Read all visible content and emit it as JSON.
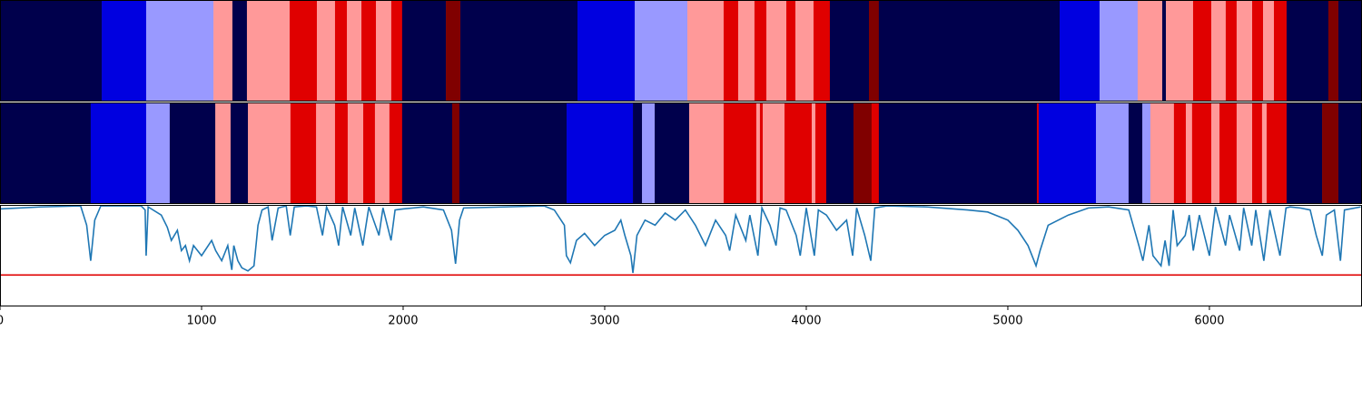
{
  "chart_data": [
    {
      "type": "segments",
      "xlim": [
        0,
        6757
      ],
      "segments": [
        {
          "start": 0,
          "end": 505,
          "color": "#00004c"
        },
        {
          "start": 505,
          "end": 725,
          "color": "#0000e0"
        },
        {
          "start": 725,
          "end": 1059,
          "color": "#9999ff"
        },
        {
          "start": 1059,
          "end": 1153,
          "color": "#ff9999"
        },
        {
          "start": 1153,
          "end": 1225,
          "color": "#00004c"
        },
        {
          "start": 1225,
          "end": 1437,
          "color": "#ff9999"
        },
        {
          "start": 1437,
          "end": 1572,
          "color": "#e00000"
        },
        {
          "start": 1572,
          "end": 1662,
          "color": "#ff9999"
        },
        {
          "start": 1662,
          "end": 1721,
          "color": "#e00000"
        },
        {
          "start": 1721,
          "end": 1793,
          "color": "#ff9999"
        },
        {
          "start": 1793,
          "end": 1865,
          "color": "#e00000"
        },
        {
          "start": 1865,
          "end": 1941,
          "color": "#ff9999"
        },
        {
          "start": 1941,
          "end": 1995,
          "color": "#e00000"
        },
        {
          "start": 1995,
          "end": 2212,
          "color": "#00004c"
        },
        {
          "start": 2212,
          "end": 2284,
          "color": "#800000"
        },
        {
          "start": 2284,
          "end": 2865,
          "color": "#00004c"
        },
        {
          "start": 2865,
          "end": 3149,
          "color": "#0000e0"
        },
        {
          "start": 3149,
          "end": 3410,
          "color": "#9999ff"
        },
        {
          "start": 3410,
          "end": 3590,
          "color": "#ff9999"
        },
        {
          "start": 3590,
          "end": 3662,
          "color": "#e00000"
        },
        {
          "start": 3662,
          "end": 3743,
          "color": "#ff9999"
        },
        {
          "start": 3743,
          "end": 3802,
          "color": "#e00000"
        },
        {
          "start": 3802,
          "end": 3901,
          "color": "#ff9999"
        },
        {
          "start": 3901,
          "end": 3946,
          "color": "#e00000"
        },
        {
          "start": 3946,
          "end": 4036,
          "color": "#ff9999"
        },
        {
          "start": 4036,
          "end": 4117,
          "color": "#e00000"
        },
        {
          "start": 4117,
          "end": 4311,
          "color": "#00004c"
        },
        {
          "start": 4311,
          "end": 4360,
          "color": "#800000"
        },
        {
          "start": 4360,
          "end": 5257,
          "color": "#00004c"
        },
        {
          "start": 5257,
          "end": 5455,
          "color": "#0000e0"
        },
        {
          "start": 5455,
          "end": 5644,
          "color": "#9999ff"
        },
        {
          "start": 5644,
          "end": 5766,
          "color": "#ff9999"
        },
        {
          "start": 5766,
          "end": 5784,
          "color": "#00004c"
        },
        {
          "start": 5784,
          "end": 5919,
          "color": "#ff9999"
        },
        {
          "start": 5919,
          "end": 6009,
          "color": "#e00000"
        },
        {
          "start": 6009,
          "end": 6081,
          "color": "#ff9999"
        },
        {
          "start": 6081,
          "end": 6135,
          "color": "#e00000"
        },
        {
          "start": 6135,
          "end": 6212,
          "color": "#ff9999"
        },
        {
          "start": 6212,
          "end": 6266,
          "color": "#e00000"
        },
        {
          "start": 6266,
          "end": 6320,
          "color": "#ff9999"
        },
        {
          "start": 6320,
          "end": 6383,
          "color": "#e00000"
        },
        {
          "start": 6383,
          "end": 6590,
          "color": "#00004c"
        },
        {
          "start": 6590,
          "end": 6640,
          "color": "#800000"
        },
        {
          "start": 6640,
          "end": 6757,
          "color": "#00004c"
        }
      ]
    },
    {
      "type": "segments",
      "xlim": [
        0,
        6757
      ],
      "segments": [
        {
          "start": 0,
          "end": 450,
          "color": "#00004c"
        },
        {
          "start": 450,
          "end": 725,
          "color": "#0000e0"
        },
        {
          "start": 725,
          "end": 842,
          "color": "#9999ff"
        },
        {
          "start": 842,
          "end": 1068,
          "color": "#00004c"
        },
        {
          "start": 1068,
          "end": 1144,
          "color": "#ff9999"
        },
        {
          "start": 1144,
          "end": 1230,
          "color": "#00004c"
        },
        {
          "start": 1230,
          "end": 1441,
          "color": "#ff9999"
        },
        {
          "start": 1441,
          "end": 1568,
          "color": "#e00000"
        },
        {
          "start": 1568,
          "end": 1662,
          "color": "#ff9999"
        },
        {
          "start": 1662,
          "end": 1725,
          "color": "#e00000"
        },
        {
          "start": 1725,
          "end": 1802,
          "color": "#ff9999"
        },
        {
          "start": 1802,
          "end": 1860,
          "color": "#e00000"
        },
        {
          "start": 1860,
          "end": 1932,
          "color": "#ff9999"
        },
        {
          "start": 1932,
          "end": 1995,
          "color": "#e00000"
        },
        {
          "start": 1995,
          "end": 2243,
          "color": "#00004c"
        },
        {
          "start": 2243,
          "end": 2279,
          "color": "#800000"
        },
        {
          "start": 2279,
          "end": 2811,
          "color": "#00004c"
        },
        {
          "start": 2811,
          "end": 3140,
          "color": "#0000e0"
        },
        {
          "start": 3140,
          "end": 3185,
          "color": "#00004c"
        },
        {
          "start": 3185,
          "end": 3248,
          "color": "#9999ff"
        },
        {
          "start": 3248,
          "end": 3419,
          "color": "#00004c"
        },
        {
          "start": 3419,
          "end": 3590,
          "color": "#ff9999"
        },
        {
          "start": 3590,
          "end": 3752,
          "color": "#e00000"
        },
        {
          "start": 3752,
          "end": 3770,
          "color": "#ff9999"
        },
        {
          "start": 3770,
          "end": 3784,
          "color": "#e00000"
        },
        {
          "start": 3784,
          "end": 3892,
          "color": "#ff9999"
        },
        {
          "start": 3892,
          "end": 4027,
          "color": "#e00000"
        },
        {
          "start": 4027,
          "end": 4045,
          "color": "#ff9999"
        },
        {
          "start": 4045,
          "end": 4099,
          "color": "#e00000"
        },
        {
          "start": 4099,
          "end": 4234,
          "color": "#00004c"
        },
        {
          "start": 4234,
          "end": 4324,
          "color": "#800000"
        },
        {
          "start": 4324,
          "end": 4360,
          "color": "#e00000"
        },
        {
          "start": 4360,
          "end": 5144,
          "color": "#00004c"
        },
        {
          "start": 5144,
          "end": 5153,
          "color": "#e00000"
        },
        {
          "start": 5153,
          "end": 5437,
          "color": "#0000e0"
        },
        {
          "start": 5437,
          "end": 5599,
          "color": "#9999ff"
        },
        {
          "start": 5599,
          "end": 5667,
          "color": "#00004c"
        },
        {
          "start": 5667,
          "end": 5707,
          "color": "#9999ff"
        },
        {
          "start": 5707,
          "end": 5824,
          "color": "#ff9999"
        },
        {
          "start": 5824,
          "end": 5883,
          "color": "#e00000"
        },
        {
          "start": 5883,
          "end": 5914,
          "color": "#ff9999"
        },
        {
          "start": 5914,
          "end": 6009,
          "color": "#e00000"
        },
        {
          "start": 6009,
          "end": 6050,
          "color": "#ff9999"
        },
        {
          "start": 6050,
          "end": 6135,
          "color": "#e00000"
        },
        {
          "start": 6135,
          "end": 6212,
          "color": "#ff9999"
        },
        {
          "start": 6212,
          "end": 6261,
          "color": "#e00000"
        },
        {
          "start": 6261,
          "end": 6284,
          "color": "#ff9999"
        },
        {
          "start": 6284,
          "end": 6383,
          "color": "#e00000"
        },
        {
          "start": 6383,
          "end": 6559,
          "color": "#00004c"
        },
        {
          "start": 6559,
          "end": 6640,
          "color": "#800000"
        },
        {
          "start": 6640,
          "end": 6757,
          "color": "#00004c"
        }
      ]
    },
    {
      "type": "line",
      "xlim": [
        0,
        6757
      ],
      "ylim": [
        0,
        1
      ],
      "xticks": [
        0,
        1000,
        2000,
        3000,
        4000,
        5000,
        6000
      ],
      "threshold": 0.31,
      "threshold_color": "#e00000",
      "x": [
        0,
        200,
        400,
        430,
        450,
        470,
        500,
        700,
        720,
        725,
        735,
        800,
        830,
        850,
        880,
        900,
        920,
        940,
        960,
        1000,
        1050,
        1070,
        1100,
        1130,
        1150,
        1160,
        1180,
        1200,
        1230,
        1260,
        1280,
        1300,
        1330,
        1350,
        1380,
        1420,
        1440,
        1460,
        1520,
        1570,
        1600,
        1620,
        1660,
        1680,
        1700,
        1740,
        1760,
        1800,
        1830,
        1880,
        1900,
        1940,
        1960,
        2000,
        2050,
        2100,
        2200,
        2240,
        2260,
        2280,
        2300,
        2500,
        2700,
        2750,
        2800,
        2810,
        2830,
        2860,
        2900,
        2950,
        3000,
        3050,
        3080,
        3100,
        3130,
        3140,
        3160,
        3200,
        3250,
        3300,
        3350,
        3400,
        3450,
        3500,
        3550,
        3600,
        3620,
        3650,
        3700,
        3720,
        3760,
        3780,
        3820,
        3850,
        3870,
        3900,
        3950,
        3970,
        4000,
        4040,
        4060,
        4100,
        4150,
        4200,
        4230,
        4250,
        4290,
        4320,
        4340,
        4400,
        4600,
        4800,
        4900,
        5000,
        5050,
        5100,
        5140,
        5160,
        5200,
        5300,
        5400,
        5500,
        5600,
        5650,
        5670,
        5700,
        5720,
        5760,
        5780,
        5800,
        5820,
        5840,
        5880,
        5900,
        5920,
        5950,
        6000,
        6030,
        6080,
        6100,
        6150,
        6170,
        6210,
        6230,
        6270,
        6300,
        6350,
        6380,
        6400,
        6450,
        6500,
        6530,
        6560,
        6580,
        6620,
        6650,
        6670,
        6750
      ],
      "series": [
        {
          "color": "#1f77b4",
          "values": [
            0.96,
            0.98,
            0.99,
            0.8,
            0.45,
            0.85,
            0.99,
            0.99,
            0.95,
            0.5,
            0.98,
            0.9,
            0.78,
            0.65,
            0.75,
            0.55,
            0.6,
            0.45,
            0.6,
            0.5,
            0.65,
            0.55,
            0.45,
            0.6,
            0.36,
            0.6,
            0.45,
            0.38,
            0.35,
            0.4,
            0.8,
            0.95,
            0.98,
            0.65,
            0.97,
            0.99,
            0.7,
            0.98,
            0.99,
            0.98,
            0.7,
            0.98,
            0.8,
            0.6,
            0.98,
            0.7,
            0.97,
            0.6,
            0.98,
            0.7,
            0.97,
            0.65,
            0.95,
            0.96,
            0.97,
            0.98,
            0.95,
            0.75,
            0.42,
            0.85,
            0.97,
            0.98,
            0.99,
            0.95,
            0.8,
            0.5,
            0.43,
            0.65,
            0.72,
            0.6,
            0.7,
            0.75,
            0.85,
            0.7,
            0.5,
            0.33,
            0.7,
            0.85,
            0.8,
            0.92,
            0.85,
            0.95,
            0.8,
            0.6,
            0.85,
            0.7,
            0.55,
            0.9,
            0.65,
            0.9,
            0.5,
            0.97,
            0.8,
            0.6,
            0.97,
            0.95,
            0.7,
            0.5,
            0.97,
            0.5,
            0.95,
            0.9,
            0.75,
            0.85,
            0.5,
            0.97,
            0.7,
            0.45,
            0.97,
            0.99,
            0.98,
            0.95,
            0.93,
            0.85,
            0.75,
            0.6,
            0.4,
            0.55,
            0.8,
            0.9,
            0.97,
            0.98,
            0.95,
            0.6,
            0.45,
            0.8,
            0.5,
            0.4,
            0.65,
            0.4,
            0.95,
            0.6,
            0.7,
            0.9,
            0.55,
            0.9,
            0.5,
            0.98,
            0.6,
            0.9,
            0.55,
            0.97,
            0.6,
            0.95,
            0.45,
            0.95,
            0.5,
            0.97,
            0.98,
            0.97,
            0.95,
            0.7,
            0.5,
            0.9,
            0.95,
            0.45,
            0.95,
            0.98
          ]
        }
      ]
    }
  ]
}
